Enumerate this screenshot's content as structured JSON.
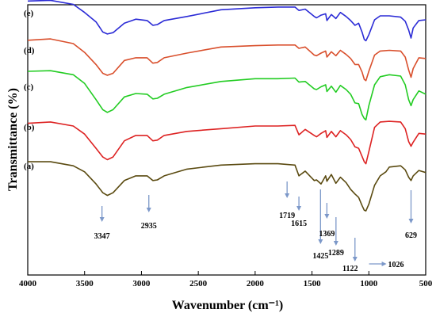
{
  "chart_data": {
    "type": "line",
    "xlabel": "Wavenumber (cm⁻¹)",
    "ylabel": "Transmittance (%)",
    "xlim": [
      4000,
      500
    ],
    "x_ticks": [
      4000,
      3500,
      3000,
      2500,
      2000,
      1500,
      1000,
      500
    ],
    "y_tick_labels": false,
    "grid": false,
    "legend": "none",
    "series": [
      {
        "name": "(e)",
        "color": "#2b2bd6",
        "points": [
          [
            4000,
            5.5
          ],
          [
            3800,
            5.6
          ],
          [
            3600,
            5.0
          ],
          [
            3500,
            3.8
          ],
          [
            3400,
            2.4
          ],
          [
            3340,
            0.9
          ],
          [
            3300,
            0.6
          ],
          [
            3250,
            0.8
          ],
          [
            3150,
            2.2
          ],
          [
            3050,
            2.8
          ],
          [
            2950,
            2.6
          ],
          [
            2900,
            1.9
          ],
          [
            2860,
            2.0
          ],
          [
            2800,
            2.6
          ],
          [
            2600,
            3.2
          ],
          [
            2300,
            4.2
          ],
          [
            2000,
            4.5
          ],
          [
            1800,
            4.6
          ],
          [
            1650,
            4.6
          ],
          [
            1615,
            4.1
          ],
          [
            1560,
            4.3
          ],
          [
            1480,
            3.2
          ],
          [
            1460,
            3.0
          ],
          [
            1420,
            3.4
          ],
          [
            1380,
            3.6
          ],
          [
            1369,
            2.6
          ],
          [
            1330,
            3.5
          ],
          [
            1290,
            2.9
          ],
          [
            1250,
            3.8
          ],
          [
            1200,
            3.2
          ],
          [
            1160,
            2.6
          ],
          [
            1122,
            1.9
          ],
          [
            1090,
            2.2
          ],
          [
            1060,
            0.9
          ],
          [
            1040,
            -0.2
          ],
          [
            1026,
            -0.4
          ],
          [
            1000,
            0.5
          ],
          [
            950,
            2.7
          ],
          [
            900,
            3.3
          ],
          [
            820,
            3.3
          ],
          [
            720,
            3.1
          ],
          [
            680,
            2.5
          ],
          [
            650,
            1.2
          ],
          [
            629,
            0.0
          ],
          [
            610,
            1.5
          ],
          [
            560,
            2.6
          ],
          [
            500,
            2.7
          ]
        ]
      },
      {
        "name": "(d)",
        "color": "#d94f2c",
        "points": [
          [
            4000,
            5.2
          ],
          [
            3800,
            5.4
          ],
          [
            3600,
            4.7
          ],
          [
            3500,
            3.4
          ],
          [
            3400,
            1.6
          ],
          [
            3340,
            0.3
          ],
          [
            3300,
            0.0
          ],
          [
            3250,
            0.3
          ],
          [
            3150,
            2.2
          ],
          [
            3050,
            2.6
          ],
          [
            2950,
            2.6
          ],
          [
            2900,
            1.8
          ],
          [
            2860,
            1.9
          ],
          [
            2800,
            2.6
          ],
          [
            2600,
            3.3
          ],
          [
            2300,
            4.2
          ],
          [
            2000,
            4.4
          ],
          [
            1800,
            4.5
          ],
          [
            1650,
            4.5
          ],
          [
            1615,
            4.0
          ],
          [
            1560,
            4.2
          ],
          [
            1480,
            3.0
          ],
          [
            1460,
            2.9
          ],
          [
            1420,
            3.3
          ],
          [
            1380,
            3.6
          ],
          [
            1369,
            2.7
          ],
          [
            1330,
            3.5
          ],
          [
            1290,
            2.9
          ],
          [
            1250,
            3.7
          ],
          [
            1200,
            3.1
          ],
          [
            1160,
            2.5
          ],
          [
            1122,
            1.6
          ],
          [
            1090,
            1.6
          ],
          [
            1060,
            0.5
          ],
          [
            1040,
            -0.6
          ],
          [
            1026,
            -0.8
          ],
          [
            1000,
            0.6
          ],
          [
            950,
            3.0
          ],
          [
            900,
            3.6
          ],
          [
            820,
            3.7
          ],
          [
            720,
            3.6
          ],
          [
            680,
            2.7
          ],
          [
            650,
            0.8
          ],
          [
            629,
            -0.3
          ],
          [
            610,
            1.0
          ],
          [
            560,
            2.6
          ],
          [
            500,
            2.5
          ]
        ]
      },
      {
        "name": "(c)",
        "color": "#22cc22",
        "points": [
          [
            4000,
            6.0
          ],
          [
            3800,
            6.1
          ],
          [
            3600,
            5.5
          ],
          [
            3500,
            4.2
          ],
          [
            3400,
            1.8
          ],
          [
            3340,
            0.3
          ],
          [
            3300,
            -0.1
          ],
          [
            3250,
            0.3
          ],
          [
            3150,
            2.2
          ],
          [
            3050,
            2.7
          ],
          [
            2950,
            2.6
          ],
          [
            2900,
            1.9
          ],
          [
            2860,
            2.0
          ],
          [
            2800,
            2.6
          ],
          [
            2600,
            3.6
          ],
          [
            2300,
            4.5
          ],
          [
            2000,
            4.9
          ],
          [
            1800,
            4.9
          ],
          [
            1650,
            5.0
          ],
          [
            1615,
            4.4
          ],
          [
            1560,
            4.5
          ],
          [
            1480,
            3.4
          ],
          [
            1460,
            3.3
          ],
          [
            1420,
            3.7
          ],
          [
            1380,
            4.0
          ],
          [
            1369,
            3.0
          ],
          [
            1330,
            3.8
          ],
          [
            1290,
            2.9
          ],
          [
            1250,
            3.9
          ],
          [
            1200,
            3.3
          ],
          [
            1160,
            2.6
          ],
          [
            1122,
            1.3
          ],
          [
            1090,
            1.2
          ],
          [
            1060,
            -0.4
          ],
          [
            1040,
            -1.0
          ],
          [
            1026,
            -1.2
          ],
          [
            1000,
            0.9
          ],
          [
            950,
            4.0
          ],
          [
            900,
            5.2
          ],
          [
            820,
            5.5
          ],
          [
            720,
            5.3
          ],
          [
            680,
            4.0
          ],
          [
            650,
            1.8
          ],
          [
            629,
            0.9
          ],
          [
            610,
            1.8
          ],
          [
            560,
            3.1
          ],
          [
            500,
            2.6
          ]
        ]
      },
      {
        "name": "(b)",
        "color": "#dd2222",
        "points": [
          [
            4000,
            4.4
          ],
          [
            3800,
            4.6
          ],
          [
            3600,
            4.0
          ],
          [
            3500,
            2.8
          ],
          [
            3400,
            0.7
          ],
          [
            3340,
            -0.6
          ],
          [
            3300,
            -1.0
          ],
          [
            3250,
            -0.6
          ],
          [
            3150,
            1.8
          ],
          [
            3050,
            2.6
          ],
          [
            2950,
            2.6
          ],
          [
            2900,
            1.8
          ],
          [
            2860,
            1.9
          ],
          [
            2800,
            2.6
          ],
          [
            2600,
            3.2
          ],
          [
            2300,
            3.6
          ],
          [
            2000,
            4.0
          ],
          [
            1800,
            4.0
          ],
          [
            1650,
            4.1
          ],
          [
            1615,
            2.7
          ],
          [
            1560,
            3.5
          ],
          [
            1480,
            2.6
          ],
          [
            1460,
            2.4
          ],
          [
            1420,
            2.9
          ],
          [
            1380,
            3.3
          ],
          [
            1369,
            2.3
          ],
          [
            1330,
            3.2
          ],
          [
            1290,
            2.4
          ],
          [
            1250,
            3.3
          ],
          [
            1200,
            2.7
          ],
          [
            1160,
            2.0
          ],
          [
            1122,
            0.9
          ],
          [
            1090,
            0.7
          ],
          [
            1060,
            -0.5
          ],
          [
            1040,
            -1.3
          ],
          [
            1026,
            -1.6
          ],
          [
            1000,
            0.2
          ],
          [
            950,
            3.8
          ],
          [
            900,
            4.6
          ],
          [
            820,
            4.7
          ],
          [
            720,
            4.6
          ],
          [
            680,
            3.6
          ],
          [
            650,
            1.7
          ],
          [
            629,
            1.0
          ],
          [
            610,
            1.6
          ],
          [
            560,
            2.9
          ],
          [
            500,
            2.8
          ]
        ]
      },
      {
        "name": "(a)",
        "color": "#5a4a10",
        "points": [
          [
            4000,
            4.7
          ],
          [
            3800,
            4.7
          ],
          [
            3600,
            4.1
          ],
          [
            3500,
            3.2
          ],
          [
            3400,
            1.4
          ],
          [
            3340,
            0.1
          ],
          [
            3300,
            -0.3
          ],
          [
            3250,
            0.1
          ],
          [
            3150,
            1.9
          ],
          [
            3050,
            2.6
          ],
          [
            2950,
            2.6
          ],
          [
            2900,
            1.9
          ],
          [
            2860,
            2.0
          ],
          [
            2800,
            2.6
          ],
          [
            2600,
            3.6
          ],
          [
            2300,
            4.2
          ],
          [
            2000,
            4.4
          ],
          [
            1800,
            4.4
          ],
          [
            1650,
            4.2
          ],
          [
            1615,
            2.6
          ],
          [
            1560,
            3.3
          ],
          [
            1480,
            1.9
          ],
          [
            1460,
            2.0
          ],
          [
            1420,
            1.4
          ],
          [
            1380,
            2.6
          ],
          [
            1369,
            1.8
          ],
          [
            1330,
            2.8
          ],
          [
            1290,
            1.5
          ],
          [
            1250,
            2.4
          ],
          [
            1200,
            1.6
          ],
          [
            1160,
            0.6
          ],
          [
            1122,
            -0.1
          ],
          [
            1090,
            -0.6
          ],
          [
            1060,
            -1.8
          ],
          [
            1040,
            -2.5
          ],
          [
            1026,
            -2.6
          ],
          [
            1000,
            -1.6
          ],
          [
            950,
            1.2
          ],
          [
            900,
            2.6
          ],
          [
            850,
            3.2
          ],
          [
            820,
            3.9
          ],
          [
            720,
            4.1
          ],
          [
            680,
            3.5
          ],
          [
            650,
            2.4
          ],
          [
            629,
            1.9
          ],
          [
            610,
            2.6
          ],
          [
            560,
            3.4
          ],
          [
            500,
            3.1
          ]
        ]
      }
    ],
    "annotations": [
      {
        "label": "3347",
        "x": 3347
      },
      {
        "label": "2935",
        "x": 2935
      },
      {
        "label": "1719",
        "x": 1719
      },
      {
        "label": "1615",
        "x": 1615
      },
      {
        "label": "1425",
        "x": 1425
      },
      {
        "label": "1369",
        "x": 1369
      },
      {
        "label": "1289",
        "x": 1289
      },
      {
        "label": "1122",
        "x": 1122
      },
      {
        "label": "1026",
        "x": 1026
      },
      {
        "label": "629",
        "x": 629
      }
    ],
    "arrow_color": "#7c98c9"
  }
}
